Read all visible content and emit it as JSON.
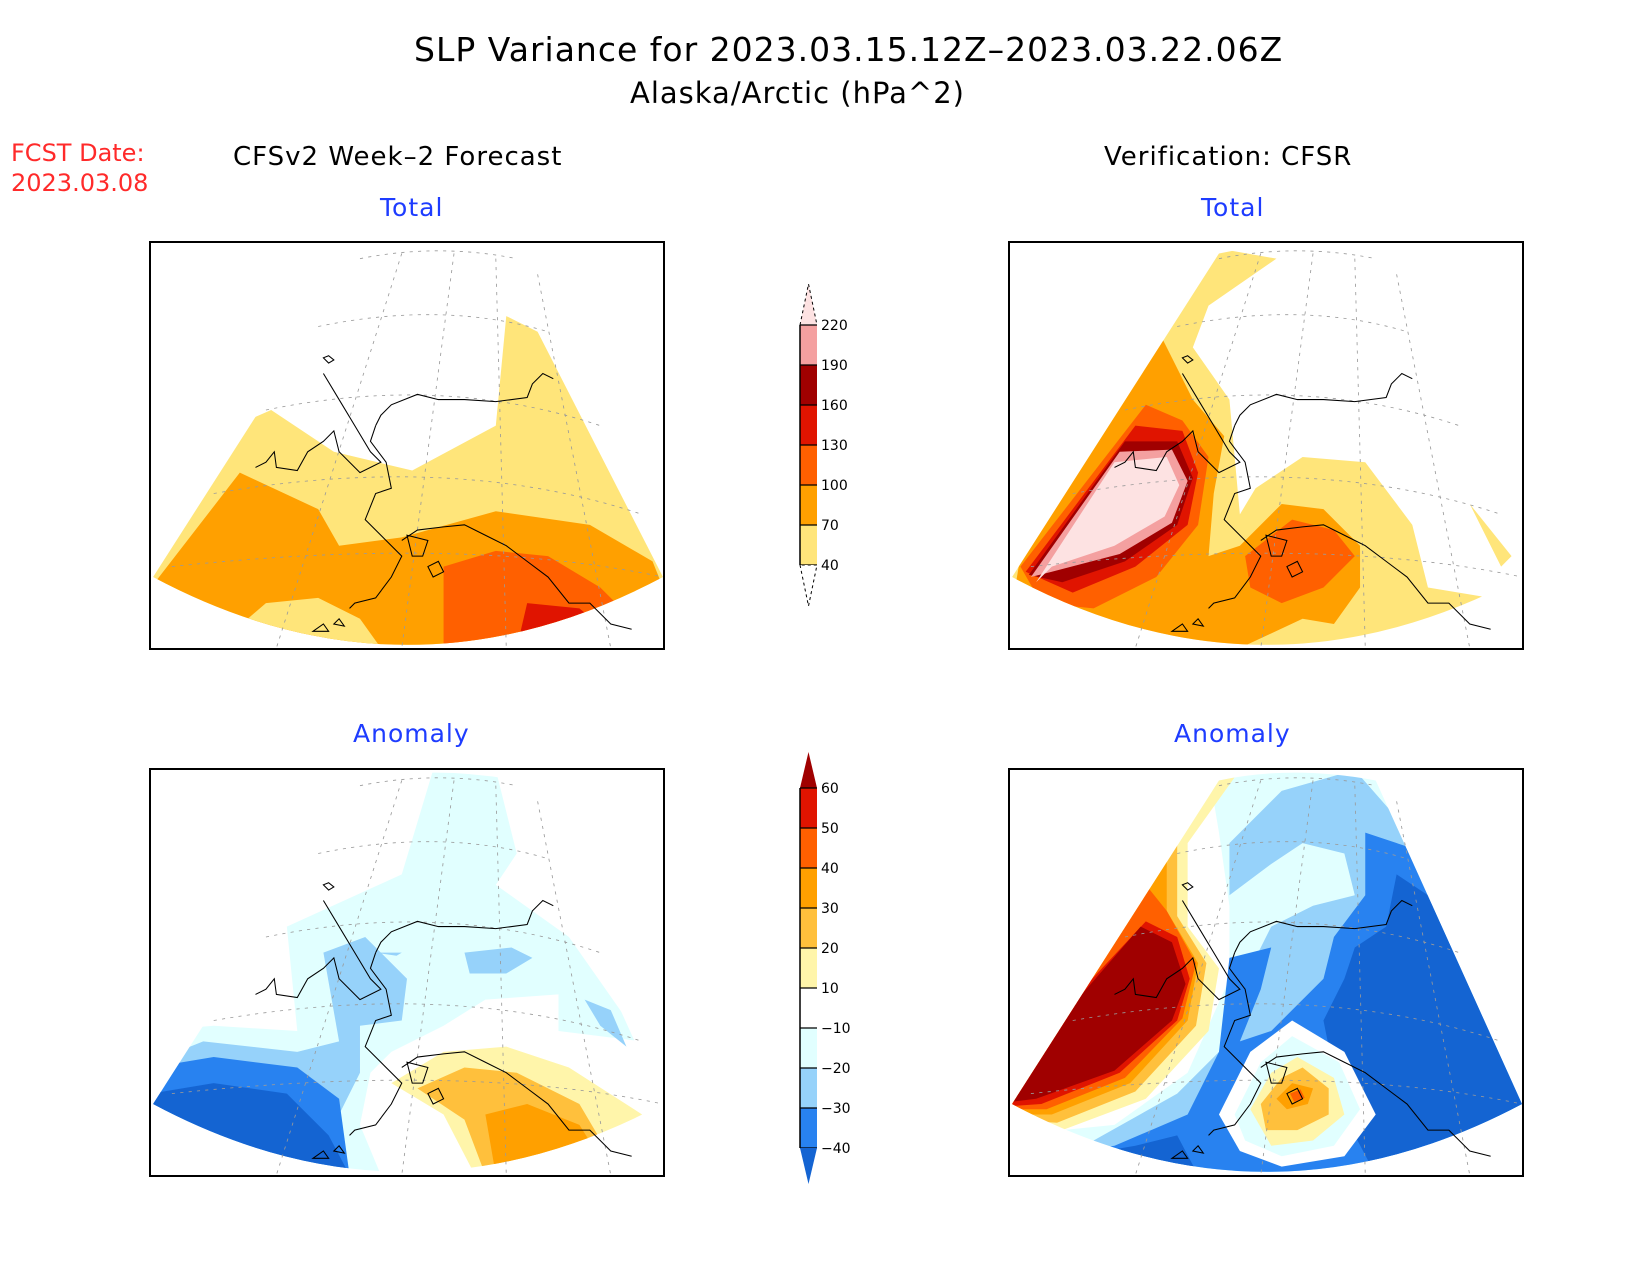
{
  "header": {
    "title": "SLP Variance for 2023.03.15.12Z–2023.03.22.06Z",
    "subtitle": "Alaska/Arctic (hPa^2)",
    "fcst_label": "FCST Date:",
    "fcst_date": "2023.03.08",
    "left_column": "CFSv2 Week–2 Forecast",
    "right_column": "Verification: CFSR"
  },
  "panels": {
    "fcst_total": {
      "title": "Total"
    },
    "verif_total": {
      "title": "Total"
    },
    "fcst_anom": {
      "title": "Anomaly"
    },
    "verif_anom": {
      "title": "Anomaly"
    }
  },
  "chart_data": [
    {
      "type": "heatmap",
      "name": "CFSv2 Week-2 Forecast Total",
      "title": "Total",
      "units": "hPa^2",
      "region": "Alaska/Arctic",
      "description": "Filled contours: 40-70 over Bering Sea/North Pacific and interior Alaska south of Arctic; 70-100 over western Bering and Gulf approaches; 100-130 in Gulf of Alaska; 130-160 maximum in southern Gulf of Alaska; below 40 over Arctic Ocean/northern Alaska"
    },
    {
      "type": "heatmap",
      "name": "Verification CFSR Total",
      "title": "Total",
      "units": "hPa^2",
      "region": "Alaska/Arctic",
      "description": "Strong maximum (>220) over eastern Siberia/western Bering Sea ringed by 190-220, 160-190, 130-160, 100-130, 70-100, 40-70 bands; secondary 100-130 maximum south of Alaska Peninsula; below 40 over Arctic and mainland Alaska"
    },
    {
      "type": "heatmap",
      "name": "CFSv2 Week-2 Forecast Anomaly",
      "title": "Anomaly",
      "units": "hPa^2",
      "region": "Alaska/Arctic",
      "description": "Negative anomalies (-10 to -20) over Arctic and interior, -20 to -30 near Bering Strait, -30 to below -40 over far western North Pacific; positive 10-50 over Gulf of Alaska"
    },
    {
      "type": "heatmap",
      "name": "Verification CFSR Anomaly",
      "title": "Anomaly",
      "units": "hPa^2",
      "region": "Alaska/Arctic",
      "description": "Large positive anomaly (>60) over eastern Siberia/western Bering Sea; small positive 10-50 center near Kodiak; widespread negative anomalies (-20 to below -40) over Canada, Gulf of Alaska and North Pacific"
    }
  ],
  "colorbars": {
    "total": {
      "labels": [
        "220",
        "190",
        "160",
        "130",
        "100",
        "70",
        "40"
      ],
      "levels": [
        40,
        70,
        100,
        130,
        160,
        190,
        220
      ],
      "colors": [
        "#ffffff",
        "#ffe57a",
        "#ffa000",
        "#ff6000",
        "#e01400",
        "#a00000",
        "#f4a0a0",
        "#fde2e2"
      ],
      "extend": "both"
    },
    "anomaly": {
      "labels": [
        "60",
        "50",
        "40",
        "30",
        "20",
        "10",
        "−10",
        "−20",
        "−30",
        "−40"
      ],
      "levels": [
        -40,
        -30,
        -20,
        -10,
        10,
        20,
        30,
        40,
        50,
        60
      ],
      "colors": [
        "#1464d2",
        "#2882f0",
        "#96d2fa",
        "#e1ffff",
        "#ffffff",
        "#fff5aa",
        "#ffc03c",
        "#ffa000",
        "#ff6000",
        "#e01400",
        "#a00000"
      ],
      "extend": "both"
    }
  }
}
